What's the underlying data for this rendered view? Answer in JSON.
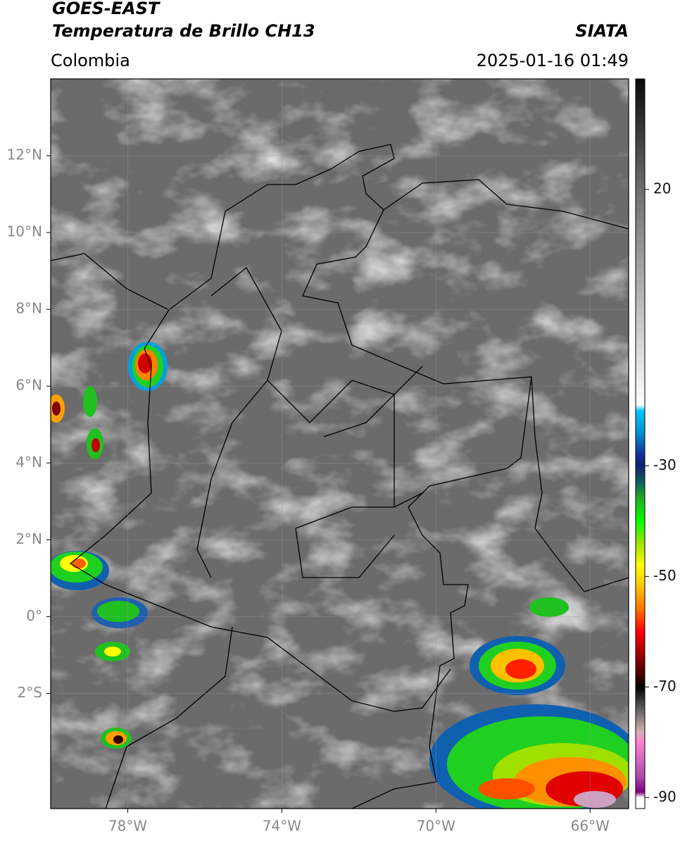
{
  "header": {
    "source": "GOES-EAST",
    "product": "Temperatura de Brillo CH13",
    "agency": "SIATA",
    "region": "Colombia",
    "datetime": "2025-01-16 01:49"
  },
  "map": {
    "xlim": [
      -80,
      -65
    ],
    "ylim": [
      -5,
      14
    ],
    "xticks": [
      {
        "value": -78,
        "label": "78°W"
      },
      {
        "value": -74,
        "label": "74°W"
      },
      {
        "value": -70,
        "label": "70°W"
      },
      {
        "value": -66,
        "label": "66°W"
      }
    ],
    "yticks": [
      {
        "value": 12,
        "label": "12°N"
      },
      {
        "value": 10,
        "label": "10°N"
      },
      {
        "value": 8,
        "label": "8°N"
      },
      {
        "value": 6,
        "label": "6°N"
      },
      {
        "value": 4,
        "label": "4°N"
      },
      {
        "value": 2,
        "label": "2°N"
      },
      {
        "value": 0,
        "label": "0°"
      },
      {
        "value": -2,
        "label": "2°S"
      }
    ],
    "grid": true
  },
  "colorbar": {
    "lim": [
      -92,
      40
    ],
    "ticks": [
      20,
      -30,
      -50,
      -70,
      -90
    ],
    "stops": [
      {
        "value": 40,
        "color": "#0a0a0a"
      },
      {
        "value": 20,
        "color": "#6e6e6e"
      },
      {
        "value": 0,
        "color": "#b8b8b8"
      },
      {
        "value": -19,
        "color": "#ffffff"
      },
      {
        "value": -20,
        "color": "#00c8ff"
      },
      {
        "value": -24,
        "color": "#0090d0"
      },
      {
        "value": -28,
        "color": "#1030a0"
      },
      {
        "value": -30,
        "color": "#102070"
      },
      {
        "value": -33,
        "color": "#106060"
      },
      {
        "value": -36,
        "color": "#20b020"
      },
      {
        "value": -40,
        "color": "#00ff00"
      },
      {
        "value": -44,
        "color": "#a0e000"
      },
      {
        "value": -48,
        "color": "#ffff00"
      },
      {
        "value": -52,
        "color": "#ffc000"
      },
      {
        "value": -56,
        "color": "#ff7000"
      },
      {
        "value": -60,
        "color": "#ff0000"
      },
      {
        "value": -64,
        "color": "#a00000"
      },
      {
        "value": -68,
        "color": "#400000"
      },
      {
        "value": -70,
        "color": "#000000"
      },
      {
        "value": -74,
        "color": "#606060"
      },
      {
        "value": -78,
        "color": "#d0b0b0"
      },
      {
        "value": -80,
        "color": "#ff80d0"
      },
      {
        "value": -86,
        "color": "#b050b0"
      },
      {
        "value": -89,
        "color": "#800080"
      },
      {
        "value": -90,
        "color": "#ffffff"
      }
    ]
  }
}
